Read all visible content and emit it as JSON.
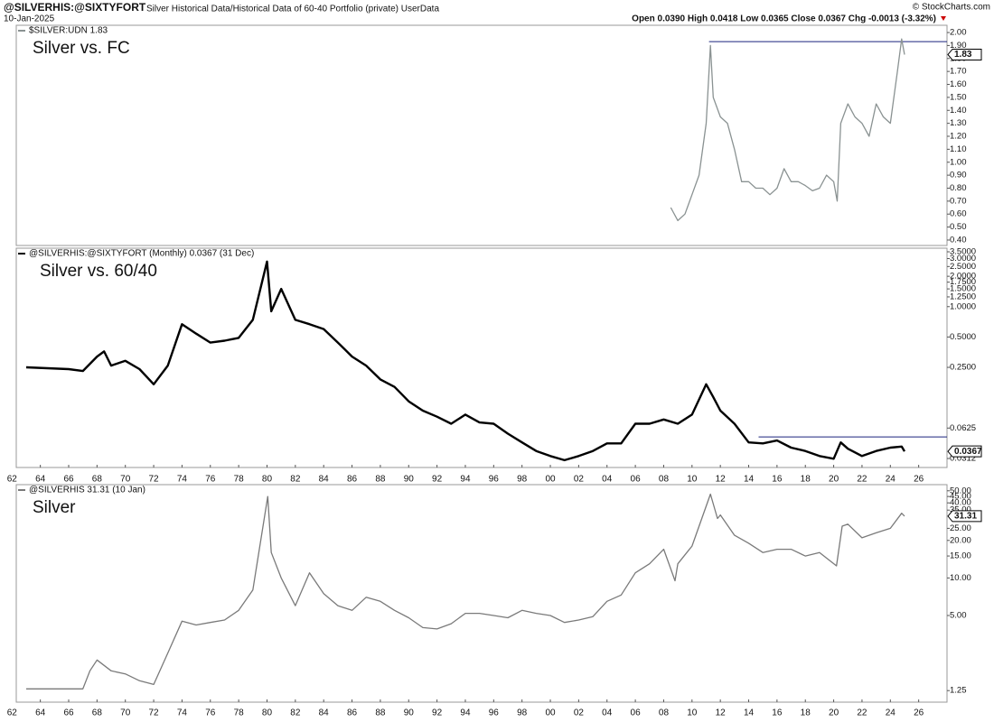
{
  "header": {
    "symbol": "@SILVERHIS:@SIXTYFORT",
    "description": "Silver Historical Data/Historical Data of 60-40 Portfolio (private) UserData",
    "date": "10-Jan-2025",
    "quote": "Open 0.0390  High 0.0418  Low 0.0365  Close 0.0367  Chg -0.0013 (-3.32%)",
    "credit": "© StockCharts.com"
  },
  "chart_data": [
    {
      "type": "line",
      "title": "Silver vs. FC",
      "log_scale": false,
      "x": [
        2008.5,
        2009,
        2009.5,
        2010,
        2010.5,
        2011,
        2011.3,
        2011.5,
        2012,
        2012.5,
        2013,
        2013.5,
        2014,
        2014.5,
        2015,
        2015.5,
        2016,
        2016.5,
        2017,
        2017.5,
        2018,
        2018.5,
        2019,
        2019.5,
        2020,
        2020.25,
        2020.5,
        2021,
        2021.5,
        2022,
        2022.5,
        2023,
        2023.5,
        2024,
        2024.5,
        2024.8,
        2025
      ],
      "series": [
        {
          "name": "$SILVER:UDN 1.83",
          "color": "#8a9292",
          "values": [
            0.65,
            0.55,
            0.6,
            0.75,
            0.9,
            1.3,
            1.9,
            1.5,
            1.35,
            1.3,
            1.1,
            0.85,
            0.85,
            0.8,
            0.8,
            0.75,
            0.8,
            0.95,
            0.85,
            0.85,
            0.82,
            0.78,
            0.8,
            0.9,
            0.85,
            0.7,
            1.3,
            1.45,
            1.35,
            1.3,
            1.2,
            1.45,
            1.35,
            1.3,
            1.7,
            1.95,
            1.83
          ]
        }
      ],
      "hline": {
        "value": 1.93,
        "from": 2011.2,
        "color": "#1a237e"
      },
      "xlim": [
        1962.3,
        2028.0
      ],
      "ylim": [
        0.358,
        2.056
      ],
      "yticks": [
        {
          "value": 0.4,
          "label": "0.40"
        },
        {
          "value": 0.5,
          "label": "0.50"
        },
        {
          "value": 0.6,
          "label": "0.60"
        },
        {
          "value": 0.7,
          "label": "0.70"
        },
        {
          "value": 0.8,
          "label": "0.80"
        },
        {
          "value": 0.9,
          "label": "0.90"
        },
        {
          "value": 1.0,
          "label": "1.00"
        },
        {
          "value": 1.1,
          "label": "1.10"
        },
        {
          "value": 1.2,
          "label": "1.20"
        },
        {
          "value": 1.3,
          "label": "1.30"
        },
        {
          "value": 1.4,
          "label": "1.40"
        },
        {
          "value": 1.5,
          "label": "1.50"
        },
        {
          "value": 1.6,
          "label": "1.60"
        },
        {
          "value": 1.7,
          "label": "1.70"
        },
        {
          "value": 1.8,
          "label": "1.80"
        },
        {
          "value": 1.9,
          "label": "1.90"
        },
        {
          "value": 2.0,
          "label": "2.00"
        }
      ]
    },
    {
      "type": "line",
      "title": "Silver vs. 60/40",
      "log_scale": true,
      "x": [
        1963,
        1966,
        1967,
        1968,
        1968.5,
        1969,
        1970,
        1971,
        1972,
        1973,
        1974,
        1975,
        1976,
        1977,
        1978,
        1979,
        1980,
        1980.3,
        1981,
        1982,
        1983,
        1984,
        1985,
        1986,
        1987,
        1988,
        1989,
        1990,
        1991,
        1992,
        1993,
        1994,
        1995,
        1996,
        1997,
        1998,
        1999,
        2000,
        2001,
        2002,
        2003,
        2004,
        2005,
        2006,
        2007,
        2008,
        2009,
        2010,
        2011,
        2011.5,
        2012,
        2013,
        2014,
        2015,
        2016,
        2017,
        2018,
        2019,
        2020,
        2020.5,
        2021,
        2022,
        2023,
        2024,
        2024.8,
        2025
      ],
      "series": [
        {
          "name": "@SILVERHIS:@SIXTYFORT (Monthly) 0.0367 (31 Dec)",
          "color": "#000000",
          "values": [
            0.25,
            0.24,
            0.23,
            0.32,
            0.36,
            0.26,
            0.29,
            0.24,
            0.17,
            0.26,
            0.67,
            0.54,
            0.44,
            0.46,
            0.49,
            0.74,
            2.8,
            0.9,
            1.5,
            0.74,
            0.67,
            0.6,
            0.44,
            0.32,
            0.26,
            0.19,
            0.16,
            0.115,
            0.093,
            0.081,
            0.069,
            0.085,
            0.071,
            0.069,
            0.055,
            0.045,
            0.037,
            0.033,
            0.03,
            0.033,
            0.037,
            0.044,
            0.044,
            0.069,
            0.069,
            0.076,
            0.069,
            0.085,
            0.17,
            0.127,
            0.093,
            0.069,
            0.045,
            0.044,
            0.047,
            0.04,
            0.037,
            0.033,
            0.031,
            0.045,
            0.039,
            0.033,
            0.037,
            0.04,
            0.041,
            0.0367
          ]
        }
      ],
      "hline": {
        "value": 0.051,
        "from": 2014.7,
        "color": "#1a237e"
      },
      "xlim": [
        1962.3,
        2028.0
      ],
      "ylim": [
        0.0254,
        3.8
      ],
      "yticks": [
        {
          "value": 0.0312,
          "label": "0.0312"
        },
        {
          "value": 0.0625,
          "label": "0.0625"
        },
        {
          "value": 0.25,
          "label": "0.2500"
        },
        {
          "value": 0.5,
          "label": "0.5000"
        },
        {
          "value": 1.0,
          "label": "1.0000"
        },
        {
          "value": 1.25,
          "label": "1.2500"
        },
        {
          "value": 1.5,
          "label": "1.5000"
        },
        {
          "value": 1.75,
          "label": "1.7500"
        },
        {
          "value": 2.0,
          "label": "2.0000"
        },
        {
          "value": 2.5,
          "label": "2.5000"
        },
        {
          "value": 3.0,
          "label": "3.0000"
        },
        {
          "value": 3.5,
          "label": "3.5000"
        }
      ],
      "xticks": [
        {
          "value": 1962,
          "label": "62"
        },
        {
          "value": 1964,
          "label": "64"
        },
        {
          "value": 1966,
          "label": "66"
        },
        {
          "value": 1968,
          "label": "68"
        },
        {
          "value": 1970,
          "label": "70"
        },
        {
          "value": 1972,
          "label": "72"
        },
        {
          "value": 1974,
          "label": "74"
        },
        {
          "value": 1976,
          "label": "76"
        },
        {
          "value": 1978,
          "label": "78"
        },
        {
          "value": 1980,
          "label": "80"
        },
        {
          "value": 1982,
          "label": "82"
        },
        {
          "value": 1984,
          "label": "84"
        },
        {
          "value": 1986,
          "label": "86"
        },
        {
          "value": 1988,
          "label": "88"
        },
        {
          "value": 1990,
          "label": "90"
        },
        {
          "value": 1992,
          "label": "92"
        },
        {
          "value": 1994,
          "label": "94"
        },
        {
          "value": 1996,
          "label": "96"
        },
        {
          "value": 1998,
          "label": "98"
        },
        {
          "value": 2000,
          "label": "00"
        },
        {
          "value": 2002,
          "label": "02"
        },
        {
          "value": 2004,
          "label": "04"
        },
        {
          "value": 2006,
          "label": "06"
        },
        {
          "value": 2008,
          "label": "08"
        },
        {
          "value": 2010,
          "label": "10"
        },
        {
          "value": 2012,
          "label": "12"
        },
        {
          "value": 2014,
          "label": "14"
        },
        {
          "value": 2016,
          "label": "16"
        },
        {
          "value": 2018,
          "label": "18"
        },
        {
          "value": 2020,
          "label": "20"
        },
        {
          "value": 2022,
          "label": "22"
        },
        {
          "value": 2024,
          "label": "24"
        },
        {
          "value": 2026,
          "label": "26"
        }
      ]
    },
    {
      "type": "line",
      "title": "Silver",
      "log_scale": true,
      "x": [
        1963,
        1967,
        1967.5,
        1968,
        1969,
        1970,
        1971,
        1972,
        1973,
        1974,
        1975,
        1976,
        1977,
        1978,
        1979,
        1980.05,
        1980.3,
        1981,
        1982,
        1983,
        1984,
        1985,
        1986,
        1987,
        1988,
        1989,
        1990,
        1991,
        1992,
        1993,
        1994,
        1995,
        1996,
        1997,
        1998,
        1999,
        2000,
        2001,
        2002,
        2003,
        2004,
        2005,
        2006,
        2007,
        2008,
        2008.8,
        2009,
        2010,
        2011.3,
        2011.8,
        2012,
        2013,
        2014,
        2015,
        2016,
        2017,
        2018,
        2019,
        2020.2,
        2020.6,
        2021,
        2022,
        2023,
        2024,
        2024.8,
        2025
      ],
      "series": [
        {
          "name": "@SILVERHIS 31.31 (10 Jan)",
          "color": "#7a7a7a",
          "values": [
            1.29,
            1.29,
            1.8,
            2.2,
            1.8,
            1.7,
            1.5,
            1.4,
            2.5,
            4.5,
            4.2,
            4.4,
            4.6,
            5.5,
            8,
            45,
            16,
            10,
            6,
            11,
            7.5,
            6,
            5.5,
            7,
            6.5,
            5.5,
            4.8,
            4,
            3.9,
            4.3,
            5.2,
            5.2,
            5,
            4.8,
            5.5,
            5.2,
            5,
            4.4,
            4.6,
            4.9,
            6.5,
            7.3,
            11,
            13,
            17,
            9.5,
            13,
            18,
            47,
            30,
            32,
            22,
            19,
            16,
            17,
            17,
            15,
            16,
            12.5,
            26,
            27,
            21,
            23,
            25,
            33,
            31.31
          ]
        }
      ],
      "xlim": [
        1962.3,
        2028.0
      ],
      "ylim": [
        1.01,
        56
      ],
      "yticks": [
        {
          "value": 1.25,
          "label": "1.25"
        },
        {
          "value": 5,
          "label": "5.00"
        },
        {
          "value": 10,
          "label": "10.00"
        },
        {
          "value": 15,
          "label": "15.00"
        },
        {
          "value": 20,
          "label": "20.00"
        },
        {
          "value": 25,
          "label": "25.00"
        },
        {
          "value": 35,
          "label": "35.00"
        },
        {
          "value": 40,
          "label": "40.00"
        },
        {
          "value": 45,
          "label": "45.00"
        },
        {
          "value": 50,
          "label": "50.00"
        }
      ],
      "xticks": [
        {
          "value": 1962,
          "label": "62"
        },
        {
          "value": 1964,
          "label": "64"
        },
        {
          "value": 1966,
          "label": "66"
        },
        {
          "value": 1968,
          "label": "68"
        },
        {
          "value": 1970,
          "label": "70"
        },
        {
          "value": 1972,
          "label": "72"
        },
        {
          "value": 1974,
          "label": "74"
        },
        {
          "value": 1976,
          "label": "76"
        },
        {
          "value": 1978,
          "label": "78"
        },
        {
          "value": 1980,
          "label": "80"
        },
        {
          "value": 1982,
          "label": "82"
        },
        {
          "value": 1984,
          "label": "84"
        },
        {
          "value": 1986,
          "label": "86"
        },
        {
          "value": 1988,
          "label": "88"
        },
        {
          "value": 1990,
          "label": "90"
        },
        {
          "value": 1992,
          "label": "92"
        },
        {
          "value": 1994,
          "label": "94"
        },
        {
          "value": 1996,
          "label": "96"
        },
        {
          "value": 1998,
          "label": "98"
        },
        {
          "value": 2000,
          "label": "00"
        },
        {
          "value": 2002,
          "label": "02"
        },
        {
          "value": 2004,
          "label": "04"
        },
        {
          "value": 2006,
          "label": "06"
        },
        {
          "value": 2008,
          "label": "08"
        },
        {
          "value": 2010,
          "label": "10"
        },
        {
          "value": 2012,
          "label": "12"
        },
        {
          "value": 2014,
          "label": "14"
        },
        {
          "value": 2016,
          "label": "16"
        },
        {
          "value": 2018,
          "label": "18"
        },
        {
          "value": 2020,
          "label": "20"
        },
        {
          "value": 2022,
          "label": "22"
        },
        {
          "value": 2024,
          "label": "24"
        },
        {
          "value": 2026,
          "label": "26"
        }
      ]
    }
  ]
}
